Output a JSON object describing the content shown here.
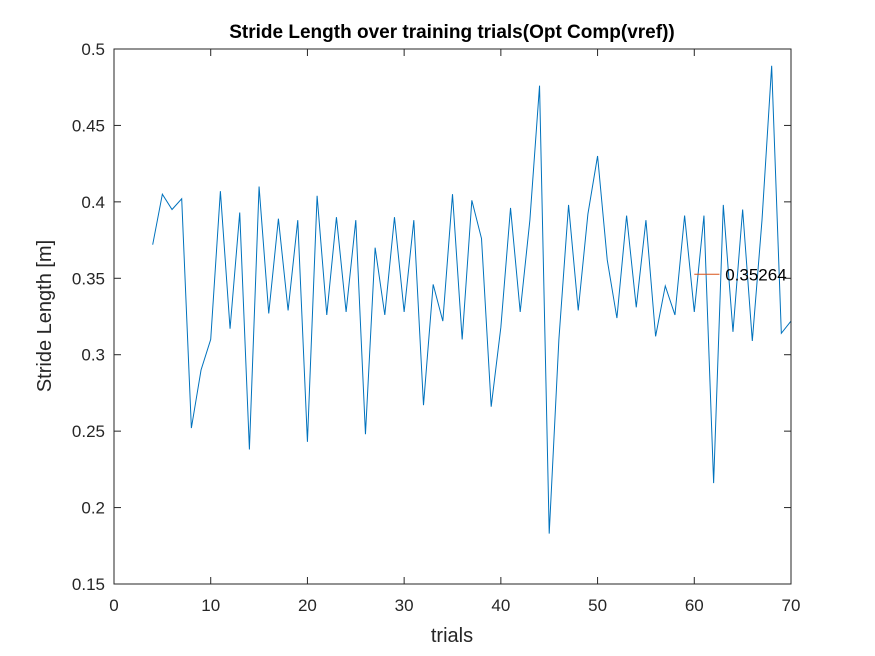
{
  "chart_data": {
    "type": "line",
    "title": "Stride Length over training trials(Opt Comp(vref))",
    "xlabel": "trials",
    "ylabel": "Stride Length [m]",
    "xlim": [
      0,
      70
    ],
    "ylim": [
      0.15,
      0.5
    ],
    "xticks": [
      0,
      10,
      20,
      30,
      40,
      50,
      60,
      70
    ],
    "yticks": [
      0.15,
      0.2,
      0.25,
      0.3,
      0.35,
      0.4,
      0.45,
      0.5
    ],
    "xtick_labels": [
      "0",
      "10",
      "20",
      "30",
      "40",
      "50",
      "60",
      "70"
    ],
    "ytick_labels": [
      "0.15",
      "0.2",
      "0.25",
      "0.3",
      "0.35",
      "0.4",
      "0.45",
      "0.5"
    ],
    "grid": false,
    "series": [
      {
        "color": "#0072BD",
        "x": [
          4,
          5,
          6,
          7,
          8,
          9,
          10,
          11,
          12,
          13,
          14,
          15,
          16,
          17,
          18,
          19,
          20,
          21,
          22,
          23,
          24,
          25,
          26,
          27,
          28,
          29,
          30,
          31,
          32,
          33,
          34,
          35,
          36,
          37,
          38,
          39,
          40,
          41,
          42,
          43,
          44,
          45,
          46,
          47,
          48,
          49,
          50,
          51,
          52,
          53,
          54,
          55,
          56,
          57,
          58,
          59,
          60,
          61,
          62,
          63,
          64,
          65,
          66,
          67,
          68,
          69,
          70
        ],
        "y": [
          0.372,
          0.405,
          0.395,
          0.402,
          0.252,
          0.29,
          0.31,
          0.407,
          0.317,
          0.393,
          0.238,
          0.41,
          0.327,
          0.389,
          0.329,
          0.388,
          0.243,
          0.404,
          0.326,
          0.39,
          0.328,
          0.388,
          0.248,
          0.37,
          0.326,
          0.39,
          0.328,
          0.388,
          0.267,
          0.346,
          0.322,
          0.405,
          0.31,
          0.401,
          0.376,
          0.266,
          0.318,
          0.396,
          0.328,
          0.388,
          0.476,
          0.183,
          0.31,
          0.398,
          0.329,
          0.392,
          0.43,
          0.362,
          0.324,
          0.391,
          0.331,
          0.388,
          0.312,
          0.345,
          0.326,
          0.391,
          0.328,
          0.391,
          0.216,
          0.398,
          0.315,
          0.395,
          0.309,
          0.388,
          0.489,
          0.314,
          0.322
        ]
      }
    ],
    "annotations": [
      {
        "text": "0.35264",
        "x": 63.2,
        "y": 0.35264,
        "line_from_x": 60.0,
        "line_to_x": 62.6,
        "color": "#D95319"
      }
    ]
  }
}
